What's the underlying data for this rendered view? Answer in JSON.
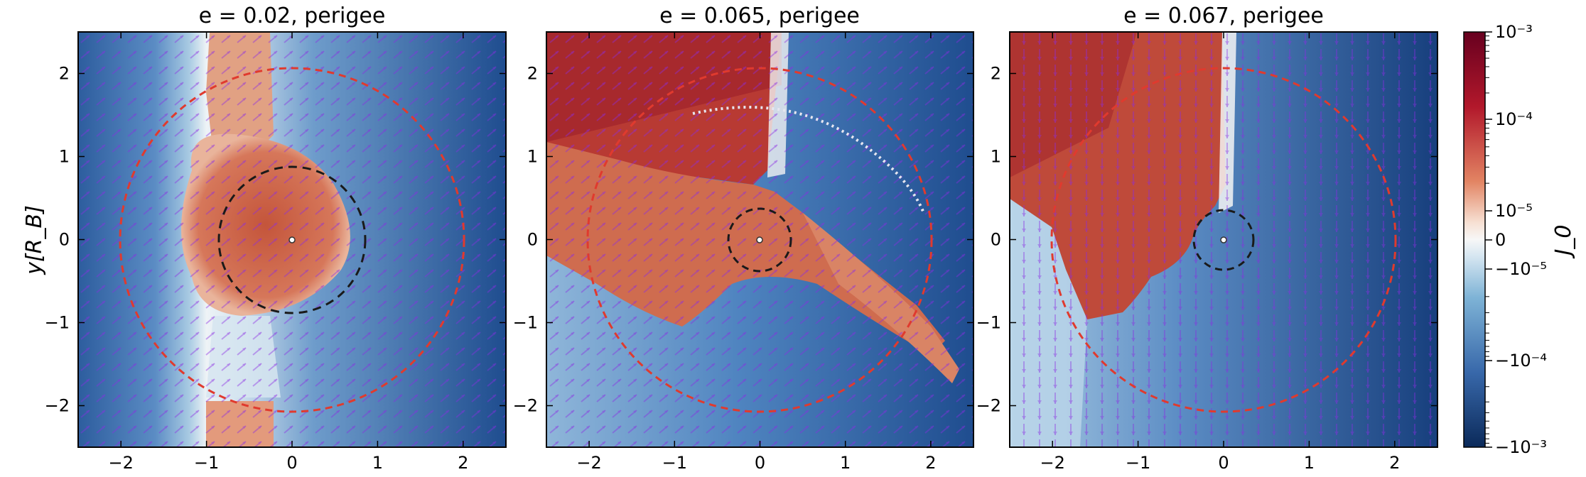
{
  "chart_data": [
    {
      "type": "heatmap",
      "title": "e = 0.02,  perigee",
      "eccentricity": 0.02,
      "ylabel": "y[R_B]",
      "xlim": [
        -2.5,
        2.5
      ],
      "ylim": [
        -2.5,
        2.5
      ],
      "xticks": [
        "−2",
        "−1",
        "0",
        "1",
        "2"
      ],
      "yticks": [
        "2",
        "1",
        "0",
        "−1",
        "−2"
      ],
      "outer_circle_radius": 2.0,
      "inner_circle_radius": 0.85,
      "inner_circle_center": [
        0,
        0
      ]
    },
    {
      "type": "heatmap",
      "title": "e = 0.065,  perigee",
      "eccentricity": 0.065,
      "xlim": [
        -2.5,
        2.5
      ],
      "ylim": [
        -2.5,
        2.5
      ],
      "xticks": [
        "−2",
        "−1",
        "0",
        "1",
        "2"
      ],
      "yticks": [
        "2",
        "1",
        "0",
        "−1",
        "−2"
      ],
      "outer_circle_radius": 2.0,
      "inner_circle_radius": 0.37,
      "inner_circle_center": [
        0,
        0
      ]
    },
    {
      "type": "heatmap",
      "title": "e = 0.067,  perigee",
      "eccentricity": 0.067,
      "xlim": [
        -2.5,
        2.5
      ],
      "ylim": [
        -2.5,
        2.5
      ],
      "xticks": [
        "−2",
        "−1",
        "0",
        "1",
        "2"
      ],
      "yticks": [
        "2",
        "1",
        "0",
        "−1",
        "−2"
      ],
      "outer_circle_radius": 2.0,
      "inner_circle_radius": 0.35,
      "inner_circle_center": [
        0,
        0
      ]
    }
  ],
  "colorbar": {
    "label": "J_0",
    "scale": "symlog",
    "ticks": [
      "10⁻³",
      "10⁻⁴",
      "10⁻⁵",
      "0",
      "−10⁻⁵",
      "−10⁻⁴",
      "−10⁻³"
    ],
    "range": [
      -0.001,
      0.001
    ]
  },
  "colors": {
    "outer_circle": "#e03a2e",
    "inner_circle": "#1a1a1a",
    "quiver": "#8a2be2",
    "positive": "#cf5a3c",
    "negative": "#3f70b4"
  }
}
